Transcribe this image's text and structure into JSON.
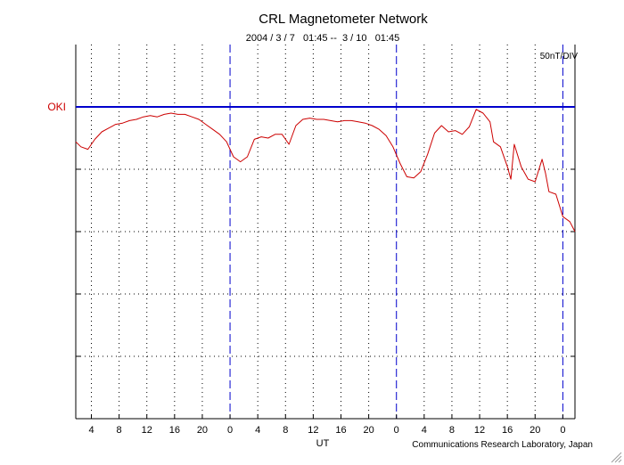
{
  "chart_data": {
    "type": "line",
    "title": "CRL Magnetometer Network",
    "subtitle": "2004 / 3 / 7   01:45 --  3 / 10   01:45",
    "xlabel": "UT",
    "scale_label": "50nT/DIV",
    "credit": "Communications Research Laboratory, Japan",
    "x_unit": "hours UT since 2004-03-07 00:00",
    "xlim": [
      1.75,
      73.75
    ],
    "ylim": [
      -250,
      50
    ],
    "y_tick_step": 50,
    "x_tick_labels": [
      "4",
      "8",
      "12",
      "16",
      "20",
      "0",
      "4",
      "8",
      "12",
      "16",
      "20",
      "0",
      "4",
      "8",
      "12",
      "16",
      "20",
      "0"
    ],
    "x_tick_hours": [
      4,
      8,
      12,
      16,
      20,
      24,
      28,
      32,
      36,
      40,
      44,
      48,
      52,
      56,
      60,
      64,
      68,
      72
    ],
    "day_boundaries_hours": [
      24,
      48,
      72
    ],
    "colors": {
      "trace": "#cc0000",
      "baseline": "#0000cc",
      "day_line": "#0000cc",
      "station": "#cc0000"
    },
    "series": [
      {
        "name": "OKI",
        "baseline_value": 0,
        "x": [
          1.75,
          2.5,
          3.5,
          4.5,
          5.5,
          6.5,
          7.5,
          8.5,
          9.5,
          10.5,
          11.5,
          12.5,
          13.5,
          14.5,
          15.5,
          16.5,
          17.5,
          18.5,
          19.5,
          20.5,
          21.5,
          22.5,
          23.5,
          24.5,
          25.5,
          26.5,
          27.5,
          28.5,
          29.5,
          30.5,
          31.5,
          32.5,
          33.5,
          34.5,
          35.5,
          36.5,
          37.5,
          38.5,
          39.5,
          40.5,
          41.5,
          42.5,
          43.5,
          44.5,
          45.5,
          46.5,
          47.5,
          48.5,
          49.5,
          50.5,
          51.5,
          52.5,
          53.5,
          54.5,
          55.5,
          56.5,
          57.5,
          58.5,
          59.5,
          60.5,
          61.5,
          62,
          63,
          64,
          64.5,
          65,
          66,
          67,
          68,
          69,
          69.5,
          70,
          71,
          72,
          73,
          73.75
        ],
        "y": [
          -28,
          -32,
          -34,
          -26,
          -20,
          -17,
          -14,
          -13,
          -11,
          -10,
          -8,
          -7,
          -8,
          -6,
          -5,
          -6,
          -6,
          -8,
          -10,
          -14,
          -18,
          -22,
          -28,
          -40,
          -44,
          -40,
          -26,
          -24,
          -25,
          -22,
          -22,
          -30,
          -15,
          -10,
          -9,
          -10,
          -10,
          -11,
          -12,
          -11,
          -11,
          -12,
          -13,
          -15,
          -18,
          -23,
          -32,
          -45,
          -56,
          -57,
          -52,
          -38,
          -21,
          -15,
          -20,
          -19,
          -22,
          -16,
          -2,
          -5,
          -12,
          -28,
          -32,
          -48,
          -58,
          -30,
          -48,
          -58,
          -60,
          -42,
          -53,
          -68,
          -70,
          -88,
          -92,
          -100
        ]
      }
    ]
  }
}
